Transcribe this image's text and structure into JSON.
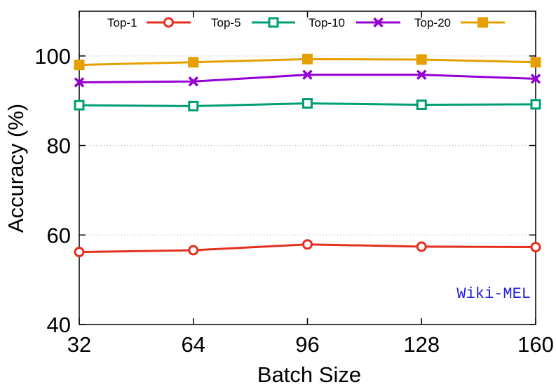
{
  "chart_data": {
    "type": "line",
    "x": [
      32,
      64,
      96,
      128,
      160
    ],
    "xlabel": "Batch Size",
    "ylabel": "Accuracy (%)",
    "xlim": [
      32,
      160
    ],
    "ylim": [
      40,
      110
    ],
    "xticks": [
      "32",
      "64",
      "96",
      "128",
      "160"
    ],
    "yticks": [
      "40",
      "60",
      "80",
      "100"
    ],
    "grid": "horizontal dotted",
    "legend_position": "top",
    "series": [
      {
        "name": "Top-1",
        "marker": "circle",
        "color": "#e52f1f",
        "values": [
          56.2,
          56.6,
          57.9,
          57.4,
          57.3
        ]
      },
      {
        "name": "Top-5",
        "marker": "square-open",
        "color": "#009e73",
        "values": [
          89.0,
          88.8,
          89.4,
          89.1,
          89.2
        ]
      },
      {
        "name": "Top-10",
        "marker": "x",
        "color": "#9400d3",
        "values": [
          94.1,
          94.3,
          95.8,
          95.8,
          94.9
        ]
      },
      {
        "name": "Top-20",
        "marker": "square-filled",
        "color": "#e69f00",
        "values": [
          98.0,
          98.6,
          99.3,
          99.2,
          98.6
        ]
      }
    ],
    "annotation": {
      "text": "Wiki-MEL",
      "color": "#2222dd"
    }
  }
}
